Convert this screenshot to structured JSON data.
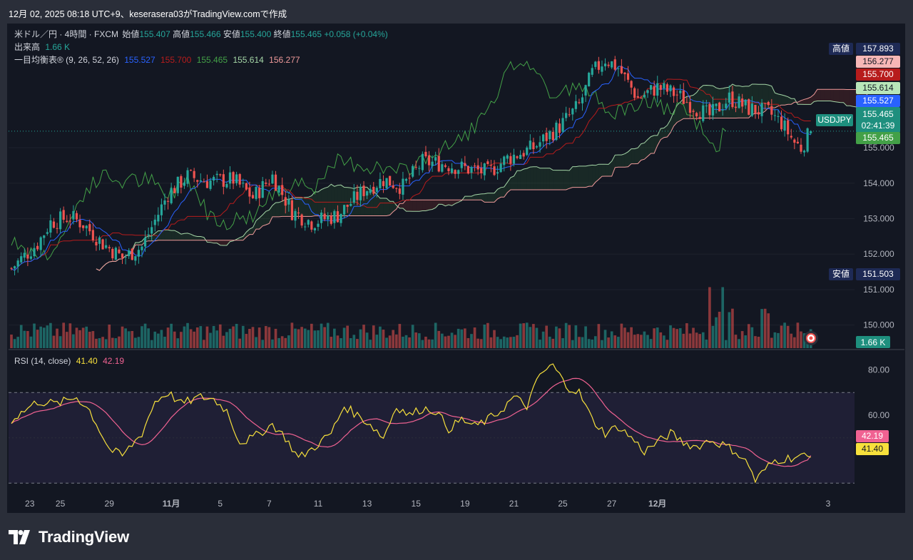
{
  "header": {
    "text": "12月 02, 2025 08:18 UTC+9、keserasera03がTradingView.comで作成"
  },
  "legend": {
    "symbol": "米ドル／円 · 4時間 · FXCM",
    "open_label": "始値",
    "open": "155.407",
    "high_label": "高値",
    "high": "155.466",
    "low_label": "安値",
    "low": "155.400",
    "close_label": "終値",
    "close": "155.465",
    "change": "+0.058 (+0.04%)",
    "volume_label": "出来高",
    "volume": "1.66 K",
    "ichimoku_label": "一目均衡表® (9, 26, 52, 26)",
    "ichimoku_values": [
      "155.527",
      "155.700",
      "155.465",
      "155.614",
      "156.277"
    ],
    "rsi_label": "RSI (14, close)",
    "rsi_value": "41.40",
    "rsi_ma": "42.19"
  },
  "colors": {
    "background": "#131722",
    "up": "#26a69a",
    "down": "#ef5350",
    "tenkan": "#2962ff",
    "kijun": "#b71c1c",
    "chikou": "#43a047",
    "span_a": "#a5d6a7",
    "span_b": "#ef9a9a",
    "rsi": "#f7e03c",
    "rsi_ma": "#f06292",
    "rsi_band": "#7e57c2"
  },
  "price_axis": {
    "ticks": [
      "155.000",
      "154.000",
      "153.000",
      "152.000",
      "151.000",
      "150.000"
    ]
  },
  "price_labels": [
    {
      "text": "157.893",
      "tag": "高値",
      "bg": "#1e2a55",
      "fg": "#ffffff"
    },
    {
      "text": "156.277",
      "bg": "#f7b7b7",
      "fg": "#131722"
    },
    {
      "text": "155.700",
      "bg": "#b71c1c",
      "fg": "#ffffff"
    },
    {
      "text": "155.614",
      "bg": "#b9e6b9",
      "fg": "#131722"
    },
    {
      "text": "155.527",
      "bg": "#2962ff",
      "fg": "#ffffff"
    },
    {
      "text": "155.465",
      "tag": "USDJPY",
      "sub": "02:41:39",
      "bg": "#1e8f7e",
      "fg": "#ffffff"
    },
    {
      "text": "155.465",
      "bg": "#43a047",
      "fg": "#ffffff"
    },
    {
      "text": "151.503",
      "tag": "安値",
      "bg": "#1e2a55",
      "fg": "#ffffff"
    }
  ],
  "volume_label": {
    "text": "1.66 K"
  },
  "rsi_axis": {
    "ticks": [
      "80.00",
      "60.00"
    ]
  },
  "rsi_labels": [
    {
      "text": "42.19",
      "bg": "#f06292",
      "fg": "#ffffff"
    },
    {
      "text": "41.40",
      "bg": "#f7e03c",
      "fg": "#131722"
    }
  ],
  "time_axis": {
    "ticks": [
      "23",
      "25",
      "29",
      "11月",
      "5",
      "7",
      "11",
      "13",
      "15",
      "19",
      "21",
      "25",
      "27",
      "12月",
      "3"
    ]
  },
  "footer": {
    "brand": "TradingView"
  },
  "chart_data": {
    "type": "candlestick",
    "title": "米ドル／円 · 4時間 · FXCM",
    "ylim": [
      149.35,
      158.5
    ],
    "price_anchors": [
      [
        0,
        151.6
      ],
      [
        8,
        152.3
      ],
      [
        12,
        152.9
      ],
      [
        18,
        153.05
      ],
      [
        22,
        152.85
      ],
      [
        28,
        152.3
      ],
      [
        34,
        151.9
      ],
      [
        40,
        152.2
      ],
      [
        48,
        153.7
      ],
      [
        54,
        154.2
      ],
      [
        60,
        154.05
      ],
      [
        68,
        154.1
      ],
      [
        74,
        153.6
      ],
      [
        80,
        154.2
      ],
      [
        86,
        153.2
      ],
      [
        92,
        152.9
      ],
      [
        100,
        153.1
      ],
      [
        108,
        153.8
      ],
      [
        114,
        154.1
      ],
      [
        120,
        153.9
      ],
      [
        126,
        154.6
      ],
      [
        132,
        154.55
      ],
      [
        140,
        154.4
      ],
      [
        146,
        154.3
      ],
      [
        152,
        154.7
      ],
      [
        160,
        155.0
      ],
      [
        168,
        155.6
      ],
      [
        174,
        156.2
      ],
      [
        178,
        157.1
      ],
      [
        182,
        157.5
      ],
      [
        186,
        157.25
      ],
      [
        192,
        156.4
      ],
      [
        198,
        156.7
      ],
      [
        204,
        156.5
      ],
      [
        210,
        156.1
      ],
      [
        214,
        155.9
      ],
      [
        220,
        156.4
      ],
      [
        226,
        156.1
      ],
      [
        232,
        156.0
      ],
      [
        236,
        155.7
      ],
      [
        240,
        155.15
      ],
      [
        242,
        155.0
      ],
      [
        245,
        155.465
      ]
    ],
    "rsi_anchors": [
      [
        0,
        58
      ],
      [
        8,
        66
      ],
      [
        14,
        65
      ],
      [
        20,
        68
      ],
      [
        24,
        62
      ],
      [
        30,
        45
      ],
      [
        34,
        42
      ],
      [
        40,
        52
      ],
      [
        44,
        66
      ],
      [
        48,
        70
      ],
      [
        52,
        65
      ],
      [
        58,
        68
      ],
      [
        62,
        67
      ],
      [
        66,
        62
      ],
      [
        70,
        48
      ],
      [
        74,
        50
      ],
      [
        80,
        56
      ],
      [
        84,
        50
      ],
      [
        88,
        41
      ],
      [
        92,
        45
      ],
      [
        98,
        52
      ],
      [
        102,
        64
      ],
      [
        106,
        60
      ],
      [
        110,
        56
      ],
      [
        114,
        50
      ],
      [
        118,
        64
      ],
      [
        122,
        60
      ],
      [
        126,
        63
      ],
      [
        130,
        62
      ],
      [
        134,
        54
      ],
      [
        138,
        58
      ],
      [
        142,
        55
      ],
      [
        146,
        58
      ],
      [
        150,
        62
      ],
      [
        154,
        68
      ],
      [
        158,
        64
      ],
      [
        162,
        78
      ],
      [
        166,
        82
      ],
      [
        170,
        73
      ],
      [
        174,
        70
      ],
      [
        178,
        58
      ],
      [
        182,
        52
      ],
      [
        186,
        55
      ],
      [
        190,
        50
      ],
      [
        194,
        44
      ],
      [
        198,
        48
      ],
      [
        202,
        52
      ],
      [
        206,
        48
      ],
      [
        210,
        46
      ],
      [
        214,
        49
      ],
      [
        218,
        47
      ],
      [
        222,
        44
      ],
      [
        226,
        38
      ],
      [
        228,
        31
      ],
      [
        231,
        36
      ],
      [
        234,
        40
      ],
      [
        238,
        41
      ],
      [
        242,
        42
      ],
      [
        245,
        41.4
      ]
    ],
    "rsi_range": [
      30,
      70
    ],
    "rsi_ylim": [
      26,
      88
    ],
    "legend_values": {
      "tenkan": 155.527,
      "kijun": 155.7,
      "chikou": 155.465,
      "span_a": 155.614,
      "span_b": 156.277
    },
    "period_high": 157.893,
    "period_low": 151.503,
    "last_close": 155.465,
    "last_volume_k": 1.66
  }
}
